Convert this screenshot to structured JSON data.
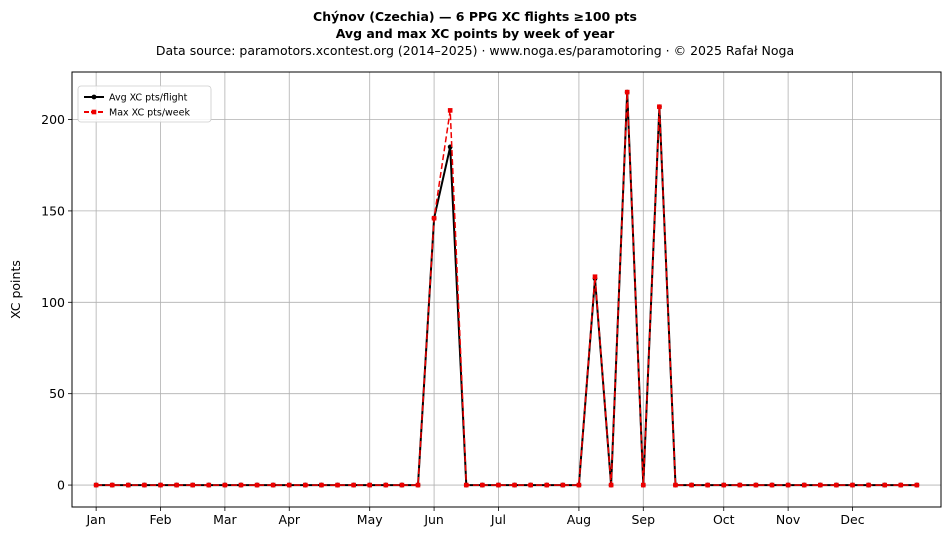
{
  "chart_data": {
    "type": "line",
    "title": "Chýnov (Czechia)  —  6 PPG XC flights ≥100 pts",
    "subtitle": "Avg and max XC points by week of year",
    "source_note": "Data source: paramotors.xcontest.org (2014–2025)  ·  www.noga.es/paramotoring  ·  © 2025 Rafał Noga",
    "xlabel": "",
    "ylabel": "XC points",
    "x": [
      1,
      2,
      3,
      4,
      5,
      6,
      7,
      8,
      9,
      10,
      11,
      12,
      13,
      14,
      15,
      16,
      17,
      18,
      19,
      20,
      21,
      22,
      23,
      24,
      25,
      26,
      27,
      28,
      29,
      30,
      31,
      32,
      33,
      34,
      35,
      36,
      37,
      38,
      39,
      40,
      41,
      42,
      43,
      44,
      45,
      46,
      47,
      48,
      49,
      50,
      51,
      52
    ],
    "xlim": [
      -0.5,
      53.5
    ],
    "ylim": [
      -12,
      226
    ],
    "month_ticks": [
      {
        "label": "Jan",
        "week": 1
      },
      {
        "label": "Feb",
        "week": 5
      },
      {
        "label": "Mar",
        "week": 9
      },
      {
        "label": "Apr",
        "week": 13
      },
      {
        "label": "May",
        "week": 18
      },
      {
        "label": "Jun",
        "week": 22
      },
      {
        "label": "Jul",
        "week": 26
      },
      {
        "label": "Aug",
        "week": 31
      },
      {
        "label": "Sep",
        "week": 35
      },
      {
        "label": "Oct",
        "week": 40
      },
      {
        "label": "Nov",
        "week": 44
      },
      {
        "label": "Dec",
        "week": 48
      }
    ],
    "y_ticks": [
      0,
      50,
      100,
      150,
      200
    ],
    "grid": true,
    "legend_position": "top-left",
    "series": [
      {
        "name": "Avg XC pts/flight",
        "color": "#000000",
        "style": "solid",
        "marker": "circle",
        "values": [
          0,
          0,
          0,
          0,
          0,
          0,
          0,
          0,
          0,
          0,
          0,
          0,
          0,
          0,
          0,
          0,
          0,
          0,
          0,
          0,
          0,
          146,
          185,
          0,
          0,
          0,
          0,
          0,
          0,
          0,
          0,
          113,
          0,
          215,
          0,
          207,
          0,
          0,
          0,
          0,
          0,
          0,
          0,
          0,
          0,
          0,
          0,
          0,
          0,
          0,
          0,
          0
        ]
      },
      {
        "name": "Max XC pts/week",
        "color": "#ee0000",
        "style": "dashed",
        "marker": "square",
        "values": [
          0,
          0,
          0,
          0,
          0,
          0,
          0,
          0,
          0,
          0,
          0,
          0,
          0,
          0,
          0,
          0,
          0,
          0,
          0,
          0,
          0,
          146,
          205,
          0,
          0,
          0,
          0,
          0,
          0,
          0,
          0,
          114,
          0,
          215,
          0,
          207,
          0,
          0,
          0,
          0,
          0,
          0,
          0,
          0,
          0,
          0,
          0,
          0,
          0,
          0,
          0,
          0
        ]
      }
    ]
  }
}
